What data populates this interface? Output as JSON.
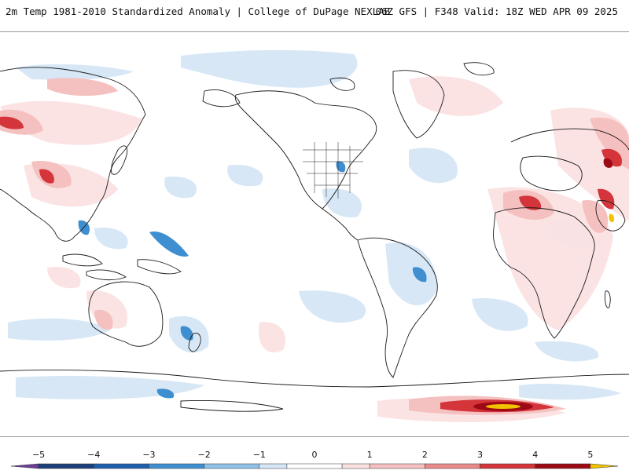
{
  "header": {
    "title_left": "2m Temp 1981-2010 Standardized Anomaly | College of DuPage NEXLAB",
    "title_right": "06Z GFS | F348 Valid: 18Z WED APR 09 2025"
  },
  "colorbar": {
    "tick_labels": [
      "−5",
      "−4",
      "−3",
      "−2",
      "−1",
      "0",
      "1",
      "2",
      "3",
      "4",
      "5"
    ],
    "tick_values": [
      -5,
      -4,
      -3,
      -2,
      -1,
      0,
      1,
      2,
      3,
      4,
      5
    ],
    "range": [
      -5.5,
      5.5
    ],
    "segments": [
      {
        "from": -5.5,
        "to": -5,
        "color": "#6a3d9a"
      },
      {
        "from": -5,
        "to": -4,
        "color": "#1c3f7a"
      },
      {
        "from": -4,
        "to": -3,
        "color": "#1f5fae"
      },
      {
        "from": -3,
        "to": -2,
        "color": "#3f8fd0"
      },
      {
        "from": -2,
        "to": -1,
        "color": "#8ec0e8"
      },
      {
        "from": -1,
        "to": -0.5,
        "color": "#d5e6f6"
      },
      {
        "from": -0.5,
        "to": 0.5,
        "color": "#ffffff"
      },
      {
        "from": 0.5,
        "to": 1,
        "color": "#fbe2e2"
      },
      {
        "from": 1,
        "to": 2,
        "color": "#f5c0c0"
      },
      {
        "from": 2,
        "to": 3,
        "color": "#e98a8a"
      },
      {
        "from": 3,
        "to": 4,
        "color": "#d3353a"
      },
      {
        "from": 4,
        "to": 5,
        "color": "#9c0a15"
      },
      {
        "from": 5,
        "to": 5.5,
        "color": "#f2c300"
      }
    ]
  },
  "map": {
    "projection": "cylindrical-equidistant",
    "center_longitude": -150,
    "variable": "2m temperature standardized anomaly",
    "palette": {
      "land_outline": "#1a1a1a",
      "cold_light": "#d5e6f6",
      "cold_mid": "#8ec0e8",
      "cold_strong": "#1f5fae",
      "warm_light": "#fbe2e2",
      "warm_mid": "#f5c0c0",
      "warm_strong": "#d3353a",
      "warm_extreme": "#9c0a15",
      "max": "#f2c300"
    }
  }
}
